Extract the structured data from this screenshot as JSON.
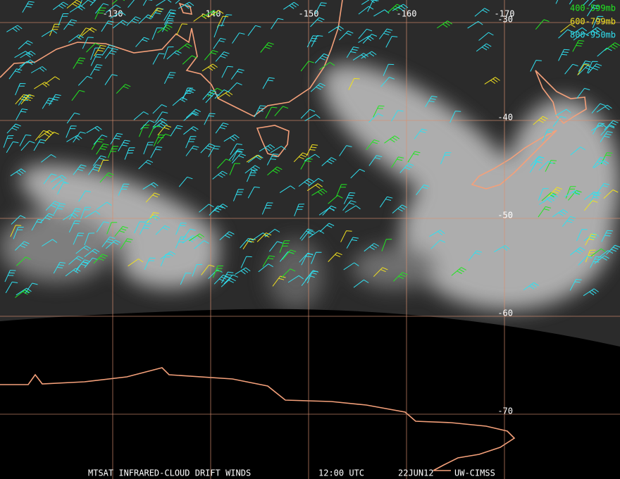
{
  "map": {
    "longitudes": [
      -130,
      -140,
      -150,
      -160,
      -170
    ],
    "latitudes": [
      -30,
      -40,
      -50,
      -60,
      -70
    ],
    "legend": [
      {
        "label": "400-599mb",
        "color": "#22e622"
      },
      {
        "label": "600-799mb",
        "color": "#f0e020"
      },
      {
        "label": "800-950mb",
        "color": "#30e0f0"
      }
    ],
    "footer": [
      "MTSAT INFRARED-CLOUD DRIFT WINDS",
      "12:00 UTC",
      "22JUN12",
      "UW-CIMSS"
    ]
  }
}
